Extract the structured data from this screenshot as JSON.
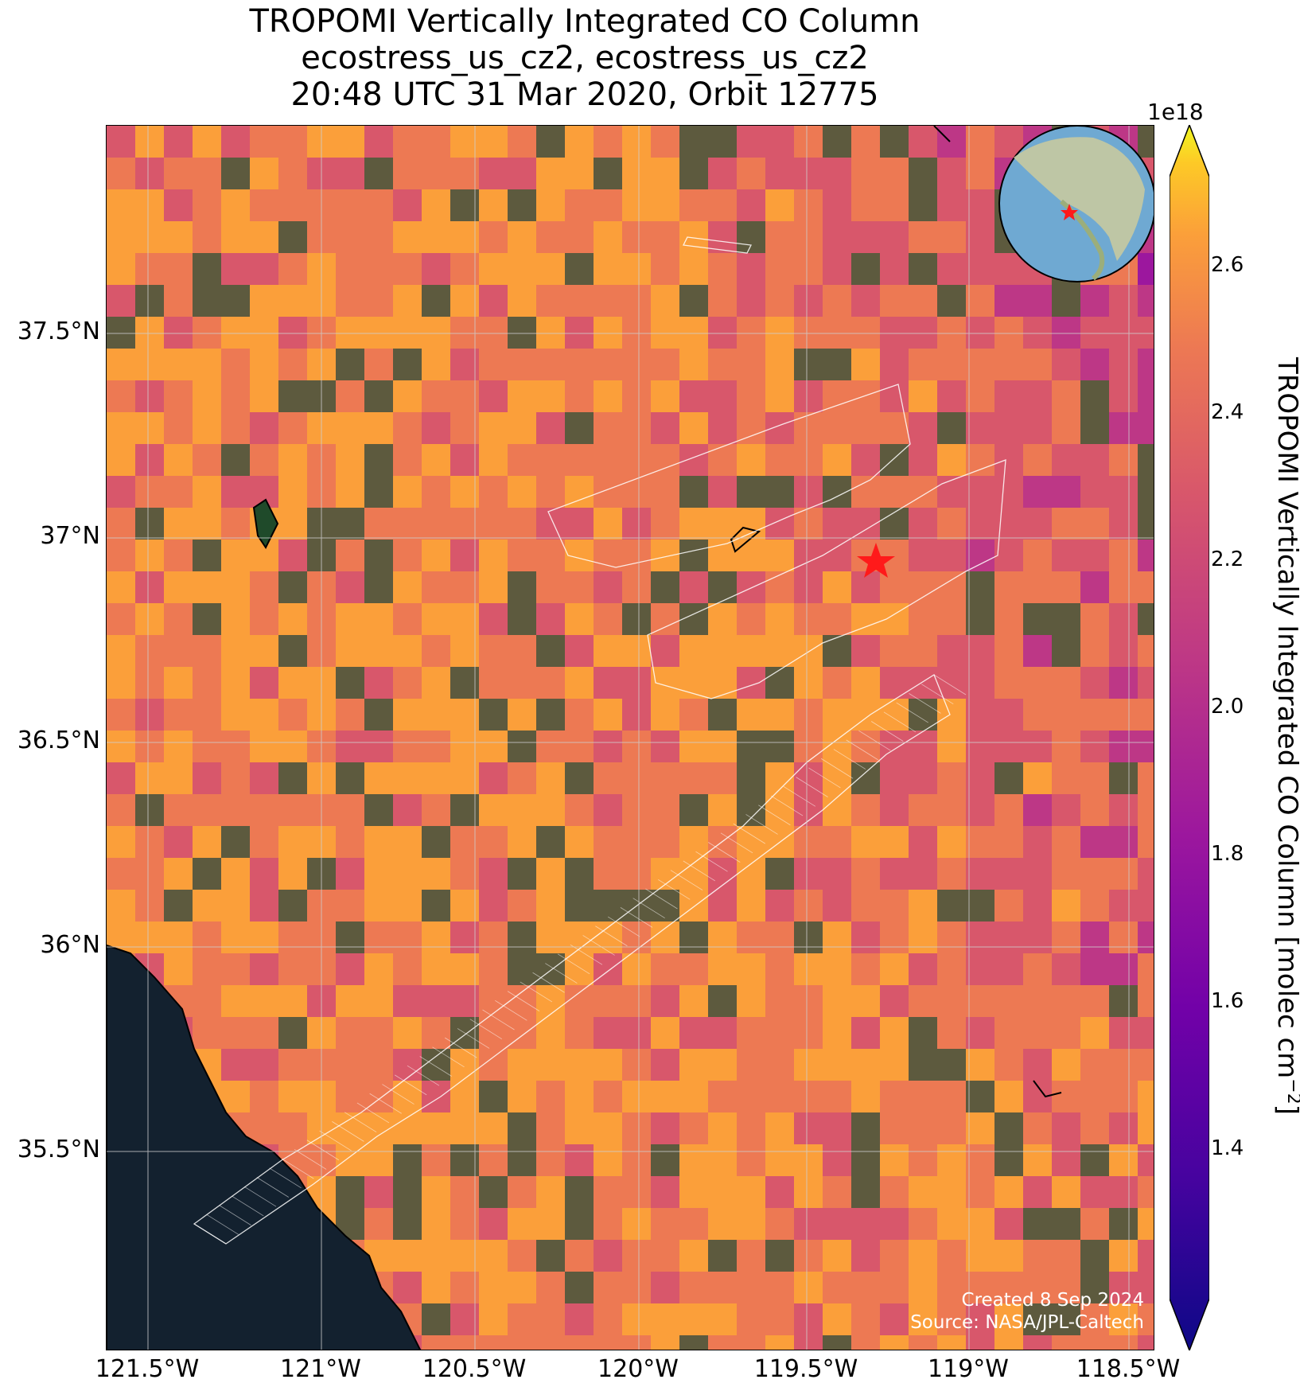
{
  "title": {
    "line1": "TROPOMI Vertically Integrated CO Column",
    "line2": "ecostress_us_cz2, ecostress_us_cz2",
    "line3": "20:48 UTC 31 Mar 2020, Orbit 12775"
  },
  "axes": {
    "lat_ticks": [
      "37.5°N",
      "37°N",
      "36.5°N",
      "36°N",
      "35.5°N"
    ],
    "lon_ticks": [
      "121.5°W",
      "121°W",
      "120.5°W",
      "120°W",
      "119.5°W",
      "119°W",
      "118.5°W"
    ]
  },
  "credit": {
    "created": "Created 8 Sep 2024",
    "source": "Source: NASA/JPL-Caltech"
  },
  "colorbar": {
    "exponent": "1e18",
    "label": "TROPOMI Vertically Integrated CO Column [molec cm",
    "label_sup": "−2",
    "label_end": "]",
    "ticks": [
      "2.6",
      "2.4",
      "2.2",
      "2.0",
      "1.8",
      "1.6",
      "1.4"
    ],
    "colormap": "plasma"
  },
  "chart_data": {
    "type": "heatmap",
    "extent": {
      "lon_min": -121.5,
      "lon_max": -118.5,
      "lat_min": 35.0,
      "lat_max": 38.0
    },
    "colorbar_range": [
      1.2,
      2.75
    ],
    "units": "molec cm^-2 (x1e18)",
    "site_marker": {
      "lon": -119.27,
      "lat": 37.03,
      "symbol": "red-star"
    },
    "ecostress_swaths": 3,
    "inset_globe": "North America with red star marker"
  }
}
